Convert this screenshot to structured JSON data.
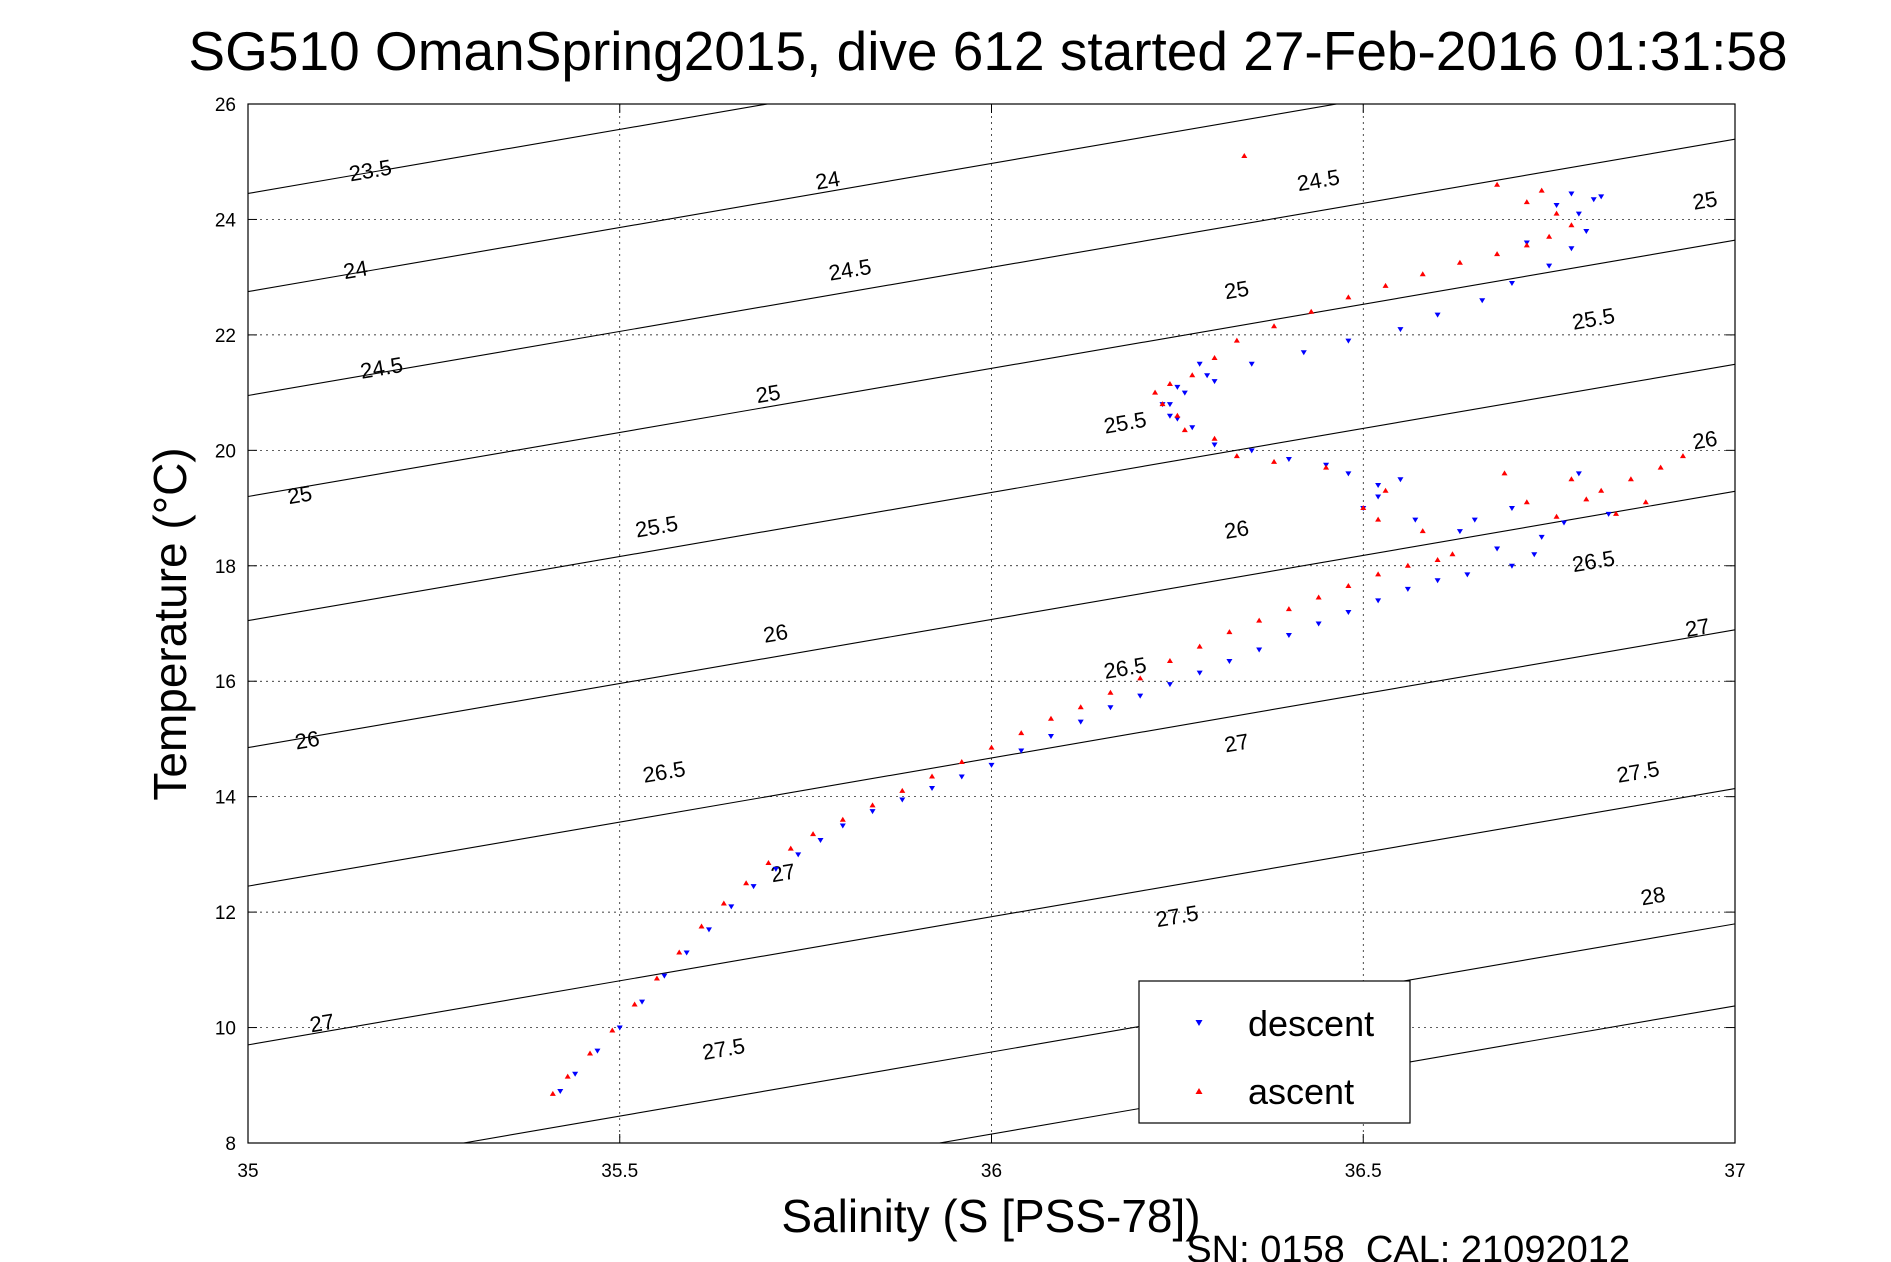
{
  "chart_data": {
    "type": "scatter",
    "title": "SG510 OmanSpring2015, dive 612 started 27-Feb-2016 01:31:58",
    "xlabel": "Salinity (S [PSS-78])",
    "ylabel": "Temperature (°C)",
    "xlim": [
      35,
      37
    ],
    "ylim": [
      8,
      26
    ],
    "x_ticks": [
      "35",
      "35.5",
      "36",
      "36.5",
      "37"
    ],
    "y_ticks": [
      "8",
      "10",
      "12",
      "14",
      "16",
      "18",
      "20",
      "22",
      "24",
      "26"
    ],
    "grid": true,
    "legend_position": "bottom-right",
    "footer": "SN: 0158  CAL: 21092012",
    "contours": [
      {
        "label": "23.5",
        "s0": 35,
        "t0": 24.45,
        "slope": 2.22,
        "label_at": [
          35.165,
          24.82
        ]
      },
      {
        "label": "24",
        "s0": 35,
        "t0": 22.75,
        "slope": 2.22,
        "label_at": [
          35.145,
          23.1
        ]
      },
      {
        "label": "24",
        "s0": 35,
        "t0": 22.75,
        "slope": 2.22,
        "label_at": [
          35.78,
          24.65
        ]
      },
      {
        "label": "24.5",
        "s0": 35,
        "t0": 20.95,
        "slope": 2.22,
        "label_at": [
          35.18,
          21.4
        ]
      },
      {
        "label": "24.5",
        "s0": 35,
        "t0": 20.95,
        "slope": 2.22,
        "label_at": [
          35.81,
          23.1
        ]
      },
      {
        "label": "24.5",
        "s0": 35,
        "t0": 20.95,
        "slope": 2.22,
        "label_at": [
          36.44,
          24.65
        ]
      },
      {
        "label": "25",
        "s0": 35,
        "t0": 19.2,
        "slope": 2.22,
        "label_at": [
          35.07,
          19.2
        ]
      },
      {
        "label": "25",
        "s0": 35,
        "t0": 19.2,
        "slope": 2.22,
        "label_at": [
          35.7,
          20.95
        ]
      },
      {
        "label": "25",
        "s0": 35,
        "t0": 19.2,
        "slope": 2.22,
        "label_at": [
          36.33,
          22.75
        ]
      },
      {
        "label": "25",
        "s0": 35,
        "t0": 19.2,
        "slope": 2.22,
        "label_at": [
          36.96,
          24.3
        ]
      },
      {
        "label": "25.5",
        "s0": 35,
        "t0": 17.05,
        "slope": 2.22,
        "label_at": [
          35.55,
          18.65
        ]
      },
      {
        "label": "25.5",
        "s0": 35,
        "t0": 17.05,
        "slope": 2.22,
        "label_at": [
          36.18,
          20.45
        ]
      },
      {
        "label": "25.5",
        "s0": 35,
        "t0": 17.05,
        "slope": 2.22,
        "label_at": [
          36.81,
          22.25
        ]
      },
      {
        "label": "26",
        "s0": 35,
        "t0": 14.85,
        "slope": 2.22,
        "label_at": [
          35.08,
          14.95
        ]
      },
      {
        "label": "26",
        "s0": 35,
        "t0": 14.85,
        "slope": 2.22,
        "label_at": [
          35.71,
          16.8
        ]
      },
      {
        "label": "26",
        "s0": 35,
        "t0": 14.85,
        "slope": 2.22,
        "label_at": [
          36.33,
          18.6
        ]
      },
      {
        "label": "26",
        "s0": 35,
        "t0": 14.85,
        "slope": 2.22,
        "label_at": [
          36.96,
          20.15
        ]
      },
      {
        "label": "26.5",
        "s0": 35,
        "t0": 12.45,
        "slope": 2.22,
        "label_at": [
          35.56,
          14.4
        ]
      },
      {
        "label": "26.5",
        "s0": 35,
        "t0": 12.45,
        "slope": 2.22,
        "label_at": [
          36.18,
          16.2
        ]
      },
      {
        "label": "26.5",
        "s0": 35,
        "t0": 12.45,
        "slope": 2.22,
        "label_at": [
          36.81,
          18.05
        ]
      },
      {
        "label": "27",
        "s0": 35,
        "t0": 9.7,
        "slope": 2.22,
        "label_at": [
          35.1,
          10.05
        ]
      },
      {
        "label": "27",
        "s0": 35,
        "t0": 9.7,
        "slope": 2.22,
        "label_at": [
          35.72,
          12.65
        ]
      },
      {
        "label": "27",
        "s0": 35,
        "t0": 9.7,
        "slope": 2.22,
        "label_at": [
          36.33,
          14.9
        ]
      },
      {
        "label": "27",
        "s0": 35,
        "t0": 9.7,
        "slope": 2.22,
        "label_at": [
          36.95,
          16.9
        ]
      },
      {
        "label": "27.5",
        "s0": 35.29,
        "t0": 8,
        "slope": 2.22,
        "label_at": [
          35.64,
          9.6
        ]
      },
      {
        "label": "27.5",
        "s0": 35.29,
        "t0": 8,
        "slope": 2.22,
        "label_at": [
          36.25,
          11.9
        ]
      },
      {
        "label": "27.5",
        "s0": 35.29,
        "t0": 8,
        "slope": 2.22,
        "label_at": [
          36.87,
          14.4
        ]
      },
      {
        "label": "28",
        "s0": 35.93,
        "t0": 8,
        "slope": 2.22,
        "label_at": [
          36.89,
          12.25
        ]
      }
    ],
    "series": [
      {
        "name": "descent",
        "color": "#0000ff",
        "marker": "triangle-down",
        "x": [
          35.42,
          35.44,
          35.47,
          35.5,
          35.53,
          35.56,
          35.59,
          35.62,
          35.65,
          35.68,
          35.71,
          35.74,
          35.77,
          35.8,
          35.84,
          35.88,
          35.92,
          35.96,
          36.0,
          36.04,
          36.08,
          36.12,
          36.16,
          36.2,
          36.24,
          36.28,
          36.32,
          36.36,
          36.4,
          36.44,
          36.48,
          36.52,
          36.56,
          36.6,
          36.64,
          36.63,
          36.57,
          36.5,
          36.52,
          36.55,
          36.48,
          36.52,
          36.45,
          36.4,
          36.35,
          36.3,
          36.27,
          36.25,
          36.24,
          36.26,
          36.3,
          36.28,
          36.24,
          36.23,
          36.25,
          36.29,
          36.35,
          36.42,
          36.48,
          36.55,
          36.6,
          36.66,
          36.7,
          36.75,
          36.78,
          36.8,
          36.79,
          36.81,
          36.78,
          36.82,
          36.76,
          36.72,
          36.65,
          36.7,
          36.74,
          36.68,
          36.73,
          36.77,
          36.83,
          36.79,
          36.7
        ],
        "y": [
          8.9,
          9.2,
          9.6,
          10.0,
          10.45,
          10.9,
          11.3,
          11.7,
          12.1,
          12.45,
          12.75,
          13.0,
          13.25,
          13.5,
          13.75,
          13.95,
          14.15,
          14.35,
          14.55,
          14.8,
          15.05,
          15.3,
          15.55,
          15.75,
          15.95,
          16.15,
          16.35,
          16.55,
          16.8,
          17.0,
          17.2,
          17.4,
          17.6,
          17.75,
          17.85,
          18.6,
          18.8,
          19.0,
          19.4,
          19.5,
          19.6,
          19.2,
          19.75,
          19.85,
          20.0,
          20.1,
          20.4,
          20.55,
          20.8,
          21.0,
          21.2,
          21.5,
          20.6,
          20.8,
          21.1,
          21.3,
          21.5,
          21.7,
          21.9,
          22.1,
          22.35,
          22.6,
          22.9,
          23.2,
          23.5,
          23.8,
          24.1,
          24.35,
          24.45,
          24.4,
          24.25,
          23.6,
          18.8,
          19.0,
          18.5,
          18.3,
          18.2,
          18.75,
          18.9,
          19.6,
          18.0
        ]
      },
      {
        "name": "ascent",
        "color": "#ff0000",
        "marker": "triangle-up",
        "x": [
          35.41,
          35.43,
          35.46,
          35.49,
          35.52,
          35.55,
          35.58,
          35.61,
          35.64,
          35.67,
          35.7,
          35.73,
          35.76,
          35.8,
          35.84,
          35.88,
          35.92,
          35.96,
          36.0,
          36.04,
          36.08,
          36.12,
          36.16,
          36.2,
          36.24,
          36.28,
          36.32,
          36.36,
          36.4,
          36.44,
          36.48,
          36.52,
          36.56,
          36.6,
          36.62,
          36.58,
          36.52,
          36.5,
          36.53,
          36.45,
          36.38,
          36.33,
          36.3,
          36.26,
          36.25,
          36.23,
          36.22,
          36.24,
          36.27,
          36.3,
          36.33,
          36.38,
          36.43,
          36.48,
          36.53,
          36.58,
          36.63,
          36.68,
          36.72,
          36.75,
          36.78,
          36.76,
          36.72,
          36.68,
          36.74,
          36.34,
          36.78,
          36.82,
          36.86,
          36.9,
          36.93,
          36.88,
          36.84,
          36.8,
          36.76,
          36.72,
          36.69
        ],
        "y": [
          8.85,
          9.15,
          9.55,
          9.95,
          10.4,
          10.85,
          11.3,
          11.75,
          12.15,
          12.5,
          12.85,
          13.1,
          13.35,
          13.6,
          13.85,
          14.1,
          14.35,
          14.6,
          14.85,
          15.1,
          15.35,
          15.55,
          15.8,
          16.05,
          16.35,
          16.6,
          16.85,
          17.05,
          17.25,
          17.45,
          17.65,
          17.85,
          18.0,
          18.1,
          18.2,
          18.6,
          18.8,
          19.0,
          19.3,
          19.7,
          19.8,
          19.9,
          20.2,
          20.35,
          20.6,
          20.8,
          21.0,
          21.15,
          21.3,
          21.6,
          21.9,
          22.15,
          22.4,
          22.65,
          22.85,
          23.05,
          23.25,
          23.4,
          23.55,
          23.7,
          23.9,
          24.1,
          24.3,
          24.6,
          24.5,
          25.1,
          19.5,
          19.3,
          19.5,
          19.7,
          19.9,
          19.1,
          18.9,
          19.15,
          18.85,
          19.1,
          19.6
        ]
      }
    ]
  }
}
